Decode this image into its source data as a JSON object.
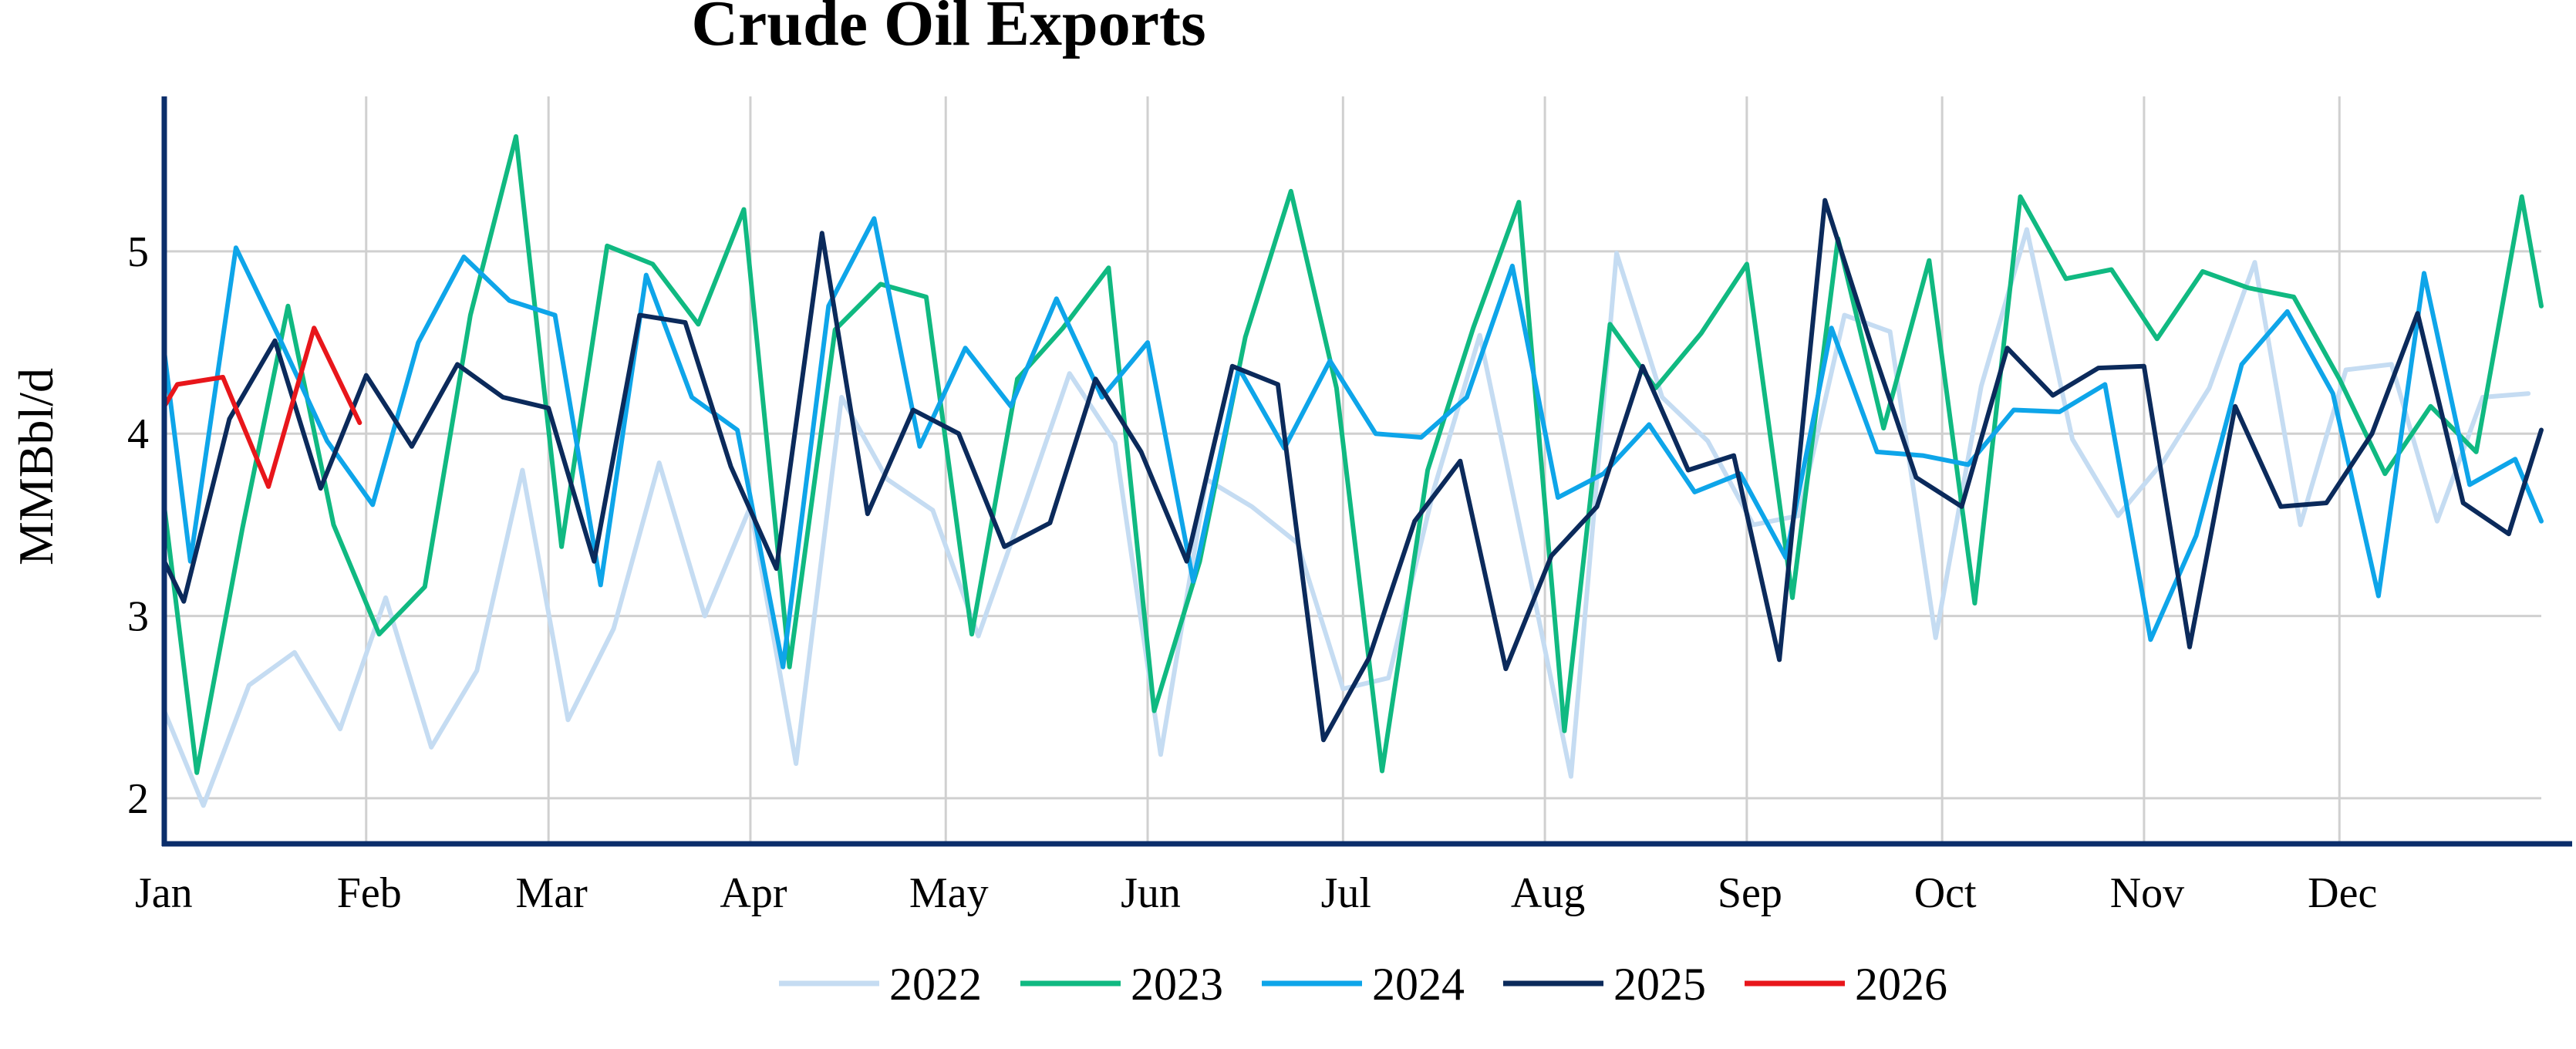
{
  "chart_data": {
    "type": "line",
    "title": "Crude Oil Exports",
    "ylabel": "MMBbl/d",
    "xlabel": "",
    "ylim": [
      1.75,
      5.85
    ],
    "yticks": [
      2,
      3,
      4,
      5
    ],
    "xlim": [
      0,
      365
    ],
    "month_ticks": [
      {
        "label": "Jan",
        "day": 0
      },
      {
        "label": "Feb",
        "day": 31
      },
      {
        "label": "Mar",
        "day": 59
      },
      {
        "label": "Apr",
        "day": 90
      },
      {
        "label": "May",
        "day": 120
      },
      {
        "label": "Jun",
        "day": 151
      },
      {
        "label": "Jul",
        "day": 181
      },
      {
        "label": "Aug",
        "day": 212
      },
      {
        "label": "Sep",
        "day": 243
      },
      {
        "label": "Oct",
        "day": 273
      },
      {
        "label": "Nov",
        "day": 304
      },
      {
        "label": "Dec",
        "day": 334
      }
    ],
    "grid": true,
    "legend_position": "bottom",
    "series": [
      {
        "name": "2022",
        "color": "#c5dcf2",
        "points": [
          [
            0,
            2.48
          ],
          [
            6,
            1.96
          ],
          [
            13,
            2.62
          ],
          [
            20,
            2.8
          ],
          [
            27,
            2.38
          ],
          [
            34,
            3.1
          ],
          [
            41,
            2.28
          ],
          [
            48,
            2.7
          ],
          [
            55,
            3.8
          ],
          [
            62,
            2.43
          ],
          [
            69,
            2.93
          ],
          [
            76,
            3.84
          ],
          [
            83,
            3.0
          ],
          [
            90,
            3.6
          ],
          [
            97,
            2.19
          ],
          [
            104,
            4.2
          ],
          [
            111,
            3.75
          ],
          [
            118,
            3.58
          ],
          [
            125,
            2.89
          ],
          [
            132,
            3.6
          ],
          [
            139,
            4.33
          ],
          [
            146,
            3.95
          ],
          [
            153,
            2.24
          ],
          [
            160,
            3.75
          ],
          [
            167,
            3.6
          ],
          [
            174,
            3.4
          ],
          [
            181,
            2.6
          ],
          [
            188,
            2.66
          ],
          [
            195,
            3.7
          ],
          [
            202,
            4.54
          ],
          [
            209,
            3.34
          ],
          [
            216,
            2.12
          ],
          [
            223,
            4.99
          ],
          [
            230,
            4.2
          ],
          [
            237,
            3.96
          ],
          [
            244,
            3.5
          ],
          [
            251,
            3.55
          ],
          [
            258,
            4.65
          ],
          [
            265,
            4.56
          ],
          [
            272,
            2.88
          ],
          [
            279,
            4.26
          ],
          [
            286,
            5.12
          ],
          [
            293,
            3.97
          ],
          [
            300,
            3.55
          ],
          [
            307,
            3.85
          ],
          [
            314,
            4.25
          ],
          [
            321,
            4.94
          ],
          [
            328,
            3.5
          ],
          [
            335,
            4.35
          ],
          [
            342,
            4.38
          ],
          [
            349,
            3.52
          ],
          [
            356,
            4.2
          ],
          [
            363,
            4.22
          ]
        ]
      },
      {
        "name": "2023",
        "color": "#10b981",
        "points": [
          [
            0,
            3.6
          ],
          [
            5,
            2.14
          ],
          [
            12,
            3.48
          ],
          [
            19,
            4.7
          ],
          [
            26,
            3.5
          ],
          [
            33,
            2.9
          ],
          [
            40,
            3.16
          ],
          [
            47,
            4.65
          ],
          [
            54,
            5.63
          ],
          [
            61,
            3.38
          ],
          [
            68,
            5.03
          ],
          [
            75,
            4.93
          ],
          [
            82,
            4.6
          ],
          [
            89,
            5.23
          ],
          [
            96,
            2.72
          ],
          [
            103,
            4.57
          ],
          [
            110,
            4.82
          ],
          [
            117,
            4.75
          ],
          [
            124,
            2.9
          ],
          [
            131,
            4.3
          ],
          [
            138,
            4.58
          ],
          [
            145,
            4.91
          ],
          [
            152,
            2.48
          ],
          [
            159,
            3.3
          ],
          [
            166,
            4.53
          ],
          [
            173,
            5.33
          ],
          [
            180,
            4.25
          ],
          [
            187,
            2.15
          ],
          [
            194,
            3.8
          ],
          [
            201,
            4.58
          ],
          [
            208,
            5.27
          ],
          [
            215,
            2.37
          ],
          [
            222,
            4.6
          ],
          [
            229,
            4.25
          ],
          [
            236,
            4.55
          ],
          [
            243,
            4.93
          ],
          [
            250,
            3.1
          ],
          [
            257,
            5.07
          ],
          [
            264,
            4.03
          ],
          [
            271,
            4.95
          ],
          [
            278,
            3.07
          ],
          [
            285,
            5.3
          ],
          [
            292,
            4.85
          ],
          [
            299,
            4.9
          ],
          [
            306,
            4.52
          ],
          [
            313,
            4.89
          ],
          [
            320,
            4.8
          ],
          [
            327,
            4.75
          ],
          [
            334,
            4.3
          ],
          [
            341,
            3.78
          ],
          [
            348,
            4.15
          ],
          [
            355,
            3.9
          ],
          [
            362,
            5.3
          ],
          [
            365,
            4.7
          ]
        ]
      },
      {
        "name": "2024",
        "color": "#0ea5e9",
        "points": [
          [
            0,
            4.45
          ],
          [
            4,
            3.3
          ],
          [
            11,
            5.02
          ],
          [
            18,
            4.5
          ],
          [
            25,
            3.96
          ],
          [
            32,
            3.61
          ],
          [
            39,
            4.5
          ],
          [
            46,
            4.97
          ],
          [
            53,
            4.73
          ],
          [
            60,
            4.65
          ],
          [
            67,
            3.17
          ],
          [
            74,
            4.87
          ],
          [
            81,
            4.2
          ],
          [
            88,
            4.02
          ],
          [
            95,
            2.72
          ],
          [
            102,
            4.7
          ],
          [
            109,
            5.18
          ],
          [
            116,
            3.93
          ],
          [
            123,
            4.47
          ],
          [
            130,
            4.15
          ],
          [
            137,
            4.74
          ],
          [
            144,
            4.2
          ],
          [
            151,
            4.5
          ],
          [
            158,
            3.19
          ],
          [
            165,
            4.36
          ],
          [
            172,
            3.92
          ],
          [
            179,
            4.4
          ],
          [
            186,
            4.0
          ],
          [
            193,
            3.98
          ],
          [
            200,
            4.2
          ],
          [
            207,
            4.92
          ],
          [
            214,
            3.65
          ],
          [
            221,
            3.78
          ],
          [
            228,
            4.05
          ],
          [
            235,
            3.68
          ],
          [
            242,
            3.78
          ],
          [
            249,
            3.32
          ],
          [
            256,
            4.58
          ],
          [
            263,
            3.9
          ],
          [
            270,
            3.88
          ],
          [
            277,
            3.83
          ],
          [
            284,
            4.13
          ],
          [
            291,
            4.12
          ],
          [
            298,
            4.27
          ],
          [
            305,
            2.87
          ],
          [
            312,
            3.44
          ],
          [
            319,
            4.38
          ],
          [
            326,
            4.67
          ],
          [
            333,
            4.22
          ],
          [
            340,
            3.11
          ],
          [
            347,
            4.88
          ],
          [
            354,
            3.72
          ],
          [
            361,
            3.86
          ],
          [
            365,
            3.52
          ]
        ]
      },
      {
        "name": "2025",
        "color": "#0b2a5b",
        "points": [
          [
            0,
            3.3
          ],
          [
            3,
            3.08
          ],
          [
            10,
            4.08
          ],
          [
            17,
            4.51
          ],
          [
            24,
            3.7
          ],
          [
            31,
            4.32
          ],
          [
            38,
            3.93
          ],
          [
            45,
            4.38
          ],
          [
            52,
            4.2
          ],
          [
            59,
            4.14
          ],
          [
            66,
            3.3
          ],
          [
            73,
            4.65
          ],
          [
            80,
            4.61
          ],
          [
            87,
            3.82
          ],
          [
            94,
            3.26
          ],
          [
            101,
            5.1
          ],
          [
            108,
            3.56
          ],
          [
            115,
            4.13
          ],
          [
            122,
            4.0
          ],
          [
            129,
            3.38
          ],
          [
            136,
            3.51
          ],
          [
            143,
            4.3
          ],
          [
            150,
            3.9
          ],
          [
            157,
            3.3
          ],
          [
            164,
            4.37
          ],
          [
            171,
            4.27
          ],
          [
            178,
            2.32
          ],
          [
            185,
            2.77
          ],
          [
            192,
            3.52
          ],
          [
            199,
            3.85
          ],
          [
            206,
            2.71
          ],
          [
            213,
            3.33
          ],
          [
            220,
            3.6
          ],
          [
            227,
            4.37
          ],
          [
            234,
            3.8
          ],
          [
            241,
            3.88
          ],
          [
            248,
            2.76
          ],
          [
            255,
            5.28
          ],
          [
            262,
            4.5
          ],
          [
            269,
            3.76
          ],
          [
            276,
            3.6
          ],
          [
            283,
            4.47
          ],
          [
            290,
            4.21
          ],
          [
            297,
            4.36
          ],
          [
            304,
            4.37
          ],
          [
            311,
            2.83
          ],
          [
            318,
            4.15
          ],
          [
            325,
            3.6
          ],
          [
            332,
            3.62
          ],
          [
            339,
            4.0
          ],
          [
            346,
            4.66
          ],
          [
            353,
            3.62
          ],
          [
            360,
            3.45
          ],
          [
            365,
            4.02
          ]
        ]
      },
      {
        "name": "2026",
        "color": "#e8161b",
        "points": [
          [
            0,
            4.15
          ],
          [
            2,
            4.27
          ],
          [
            9,
            4.31
          ],
          [
            16,
            3.71
          ],
          [
            23,
            4.58
          ],
          [
            30,
            4.06
          ]
        ]
      }
    ]
  }
}
